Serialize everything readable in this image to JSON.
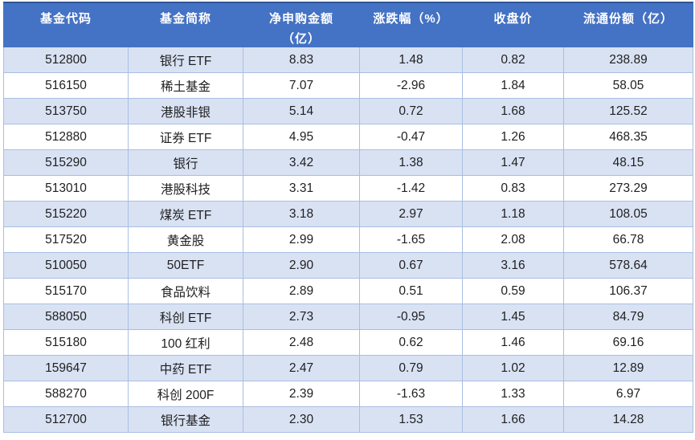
{
  "colors": {
    "header_bg": "#4472C4",
    "header_top_edge": "#2F5597",
    "header_text": "#FFFFFF",
    "banded_row_bg": "#D9E2F3",
    "white_row_bg": "#FFFFFF",
    "border": "#A9BEE2",
    "body_text": "#1F1F1F"
  },
  "chart_data": {
    "type": "table",
    "title": "",
    "columns": [
      {
        "key": "fund-code",
        "label": "基金代码"
      },
      {
        "key": "fund-name",
        "label": "基金简称"
      },
      {
        "key": "net-subscription",
        "label": "净申购金额",
        "label_line2": "（亿）"
      },
      {
        "key": "change-pct",
        "label": "涨跌幅（%）"
      },
      {
        "key": "close-price",
        "label": "收盘价"
      },
      {
        "key": "float-shares",
        "label": "流通份额（亿）"
      }
    ],
    "rows": [
      [
        "512800",
        "银行 ETF",
        "8.83",
        "1.48",
        "0.82",
        "238.89"
      ],
      [
        "516150",
        "稀土基金",
        "7.07",
        "-2.96",
        "1.84",
        "58.05"
      ],
      [
        "513750",
        "港股非银",
        "5.14",
        "0.72",
        "1.68",
        "125.52"
      ],
      [
        "512880",
        "证券 ETF",
        "4.95",
        "-0.47",
        "1.26",
        "468.35"
      ],
      [
        "515290",
        "银行",
        "3.42",
        "1.38",
        "1.47",
        "48.15"
      ],
      [
        "513010",
        "港股科技",
        "3.31",
        "-1.42",
        "0.83",
        "273.29"
      ],
      [
        "515220",
        "煤炭 ETF",
        "3.18",
        "2.97",
        "1.18",
        "108.05"
      ],
      [
        "517520",
        "黄金股",
        "2.99",
        "-1.65",
        "2.08",
        "66.78"
      ],
      [
        "510050",
        "50ETF",
        "2.90",
        "0.67",
        "3.16",
        "578.64"
      ],
      [
        "515170",
        "食品饮料",
        "2.89",
        "0.51",
        "0.59",
        "106.37"
      ],
      [
        "588050",
        "科创 ETF",
        "2.73",
        "-0.95",
        "1.45",
        "84.79"
      ],
      [
        "515180",
        "100 红利",
        "2.48",
        "0.62",
        "1.46",
        "69.16"
      ],
      [
        "159647",
        "中药 ETF",
        "2.47",
        "0.79",
        "1.02",
        "12.89"
      ],
      [
        "588270",
        "科创 200F",
        "2.39",
        "-1.63",
        "1.33",
        "6.97"
      ],
      [
        "512700",
        "银行基金",
        "2.30",
        "1.53",
        "1.66",
        "14.28"
      ]
    ]
  }
}
